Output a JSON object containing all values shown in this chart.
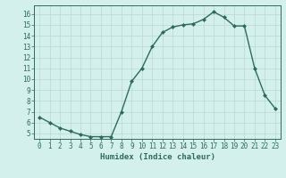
{
  "x": [
    0,
    1,
    2,
    3,
    4,
    5,
    6,
    7,
    8,
    9,
    10,
    11,
    12,
    13,
    14,
    15,
    16,
    17,
    18,
    19,
    20,
    21,
    22,
    23
  ],
  "y": [
    6.5,
    6.0,
    5.5,
    5.2,
    4.9,
    4.7,
    4.7,
    4.7,
    7.0,
    9.8,
    11.0,
    13.0,
    14.3,
    14.8,
    15.0,
    15.1,
    15.5,
    16.2,
    15.7,
    14.9,
    14.9,
    11.0,
    8.5,
    7.3
  ],
  "line_color": "#2d6b5e",
  "marker": "D",
  "marker_size": 2.0,
  "linewidth": 1.0,
  "xlabel": "Humidex (Indice chaleur)",
  "xlabel_fontsize": 6.5,
  "bg_color": "#d4f0ec",
  "grid_color": "#b8d8d4",
  "tick_color": "#2d6b5e",
  "xlim": [
    -0.5,
    23.5
  ],
  "ylim": [
    4.5,
    16.8
  ],
  "yticks": [
    5,
    6,
    7,
    8,
    9,
    10,
    11,
    12,
    13,
    14,
    15,
    16
  ],
  "xticks": [
    0,
    1,
    2,
    3,
    4,
    5,
    6,
    7,
    8,
    9,
    10,
    11,
    12,
    13,
    14,
    15,
    16,
    17,
    18,
    19,
    20,
    21,
    22,
    23
  ],
  "tick_fontsize": 5.5
}
